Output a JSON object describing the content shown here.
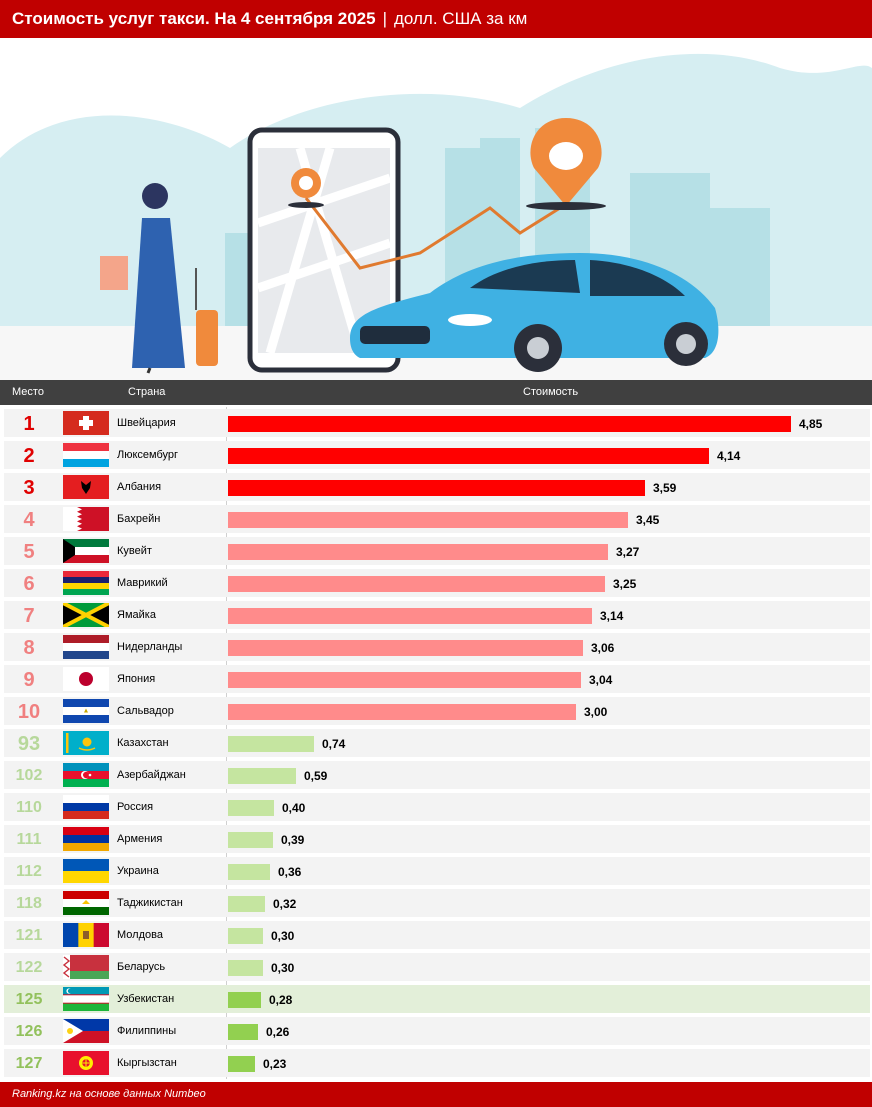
{
  "title": "Стоимость услуг такси. На 4 сентября 2025",
  "units": "долл. США за км",
  "columns": {
    "place": "Место",
    "country": "Страна",
    "cost": "Стоимость"
  },
  "footer": "Ranking.kz на основе данных Numbeo",
  "colors": {
    "top3": "#ff0000",
    "top10": "#ff8b8b",
    "cis": "#c5e5a0",
    "cis_low": "#92d050",
    "rank_top3": "#e00000",
    "rank_top10": "#f08080",
    "rank_cis": "#b7d89b",
    "rank_cis_low": "#92c15c",
    "title_bar": "#c00000",
    "highlight_row": "#e3efd9"
  },
  "chart_data": {
    "type": "bar",
    "orientation": "horizontal",
    "title": "Стоимость услуг такси. На 4 сентября 2025",
    "units": "долл. США за км",
    "xlim": [
      0,
      4.85
    ],
    "rows": [
      {
        "rank": "1",
        "country": "Швейцария",
        "value": 4.85,
        "label": "4,85",
        "group": "top3",
        "flag": "switzerland-flag"
      },
      {
        "rank": "2",
        "country": "Люксембург",
        "value": 4.14,
        "label": "4,14",
        "group": "top3",
        "flag": "luxembourg-flag"
      },
      {
        "rank": "3",
        "country": "Албания",
        "value": 3.59,
        "label": "3,59",
        "group": "top3",
        "flag": "albania-flag"
      },
      {
        "rank": "4",
        "country": "Бахрейн",
        "value": 3.45,
        "label": "3,45",
        "group": "top10",
        "flag": "bahrain-flag"
      },
      {
        "rank": "5",
        "country": "Кувейт",
        "value": 3.27,
        "label": "3,27",
        "group": "top10",
        "flag": "kuwait-flag"
      },
      {
        "rank": "6",
        "country": "Маврикий",
        "value": 3.25,
        "label": "3,25",
        "group": "top10",
        "flag": "mauritius-flag"
      },
      {
        "rank": "7",
        "country": "Ямайка",
        "value": 3.14,
        "label": "3,14",
        "group": "top10",
        "flag": "jamaica-flag"
      },
      {
        "rank": "8",
        "country": "Нидерланды",
        "value": 3.06,
        "label": "3,06",
        "group": "top10",
        "flag": "netherlands-flag"
      },
      {
        "rank": "9",
        "country": "Япония",
        "value": 3.04,
        "label": "3,04",
        "group": "top10",
        "flag": "japan-flag"
      },
      {
        "rank": "10",
        "country": "Сальвадор",
        "value": 3.0,
        "label": "3,00",
        "group": "top10",
        "flag": "el-salvador-flag"
      },
      {
        "rank": "93",
        "country": "Казахстан",
        "value": 0.74,
        "label": "0,74",
        "group": "cis",
        "flag": "kazakhstan-flag"
      },
      {
        "rank": "102",
        "country": "Азербайджан",
        "value": 0.59,
        "label": "0,59",
        "group": "cis",
        "flag": "azerbaijan-flag"
      },
      {
        "rank": "110",
        "country": "Россия",
        "value": 0.4,
        "label": "0,40",
        "group": "cis",
        "flag": "russia-flag"
      },
      {
        "rank": "111",
        "country": "Армения",
        "value": 0.39,
        "label": "0,39",
        "group": "cis",
        "flag": "armenia-flag"
      },
      {
        "rank": "112",
        "country": "Украина",
        "value": 0.36,
        "label": "0,36",
        "group": "cis",
        "flag": "ukraine-flag"
      },
      {
        "rank": "118",
        "country": "Таджикистан",
        "value": 0.32,
        "label": "0,32",
        "group": "cis",
        "flag": "tajikistan-flag"
      },
      {
        "rank": "121",
        "country": "Молдова",
        "value": 0.3,
        "label": "0,30",
        "group": "cis",
        "flag": "moldova-flag"
      },
      {
        "rank": "122",
        "country": "Беларусь",
        "value": 0.3,
        "label": "0,30",
        "group": "cis",
        "flag": "belarus-flag"
      },
      {
        "rank": "125",
        "country": "Узбекистан",
        "value": 0.28,
        "label": "0,28",
        "group": "cis_low",
        "flag": "uzbekistan-flag",
        "highlight": true
      },
      {
        "rank": "126",
        "country": "Филиппины",
        "value": 0.26,
        "label": "0,26",
        "group": "cis_low",
        "flag": "philippines-flag"
      },
      {
        "rank": "127",
        "country": "Кыргызстан",
        "value": 0.23,
        "label": "0,23",
        "group": "cis_low",
        "flag": "kyrgyzstan-flag"
      }
    ]
  }
}
